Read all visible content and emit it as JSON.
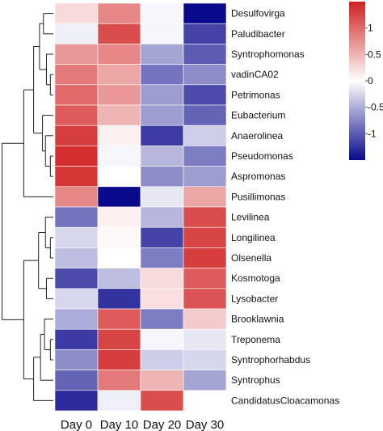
{
  "chart_data": {
    "type": "heatmap",
    "columns": [
      "Day 0",
      "Day 10",
      "Day 20",
      "Day 30"
    ],
    "rows": [
      {
        "name": "Desulfovirga",
        "values": [
          0.25,
          0.8,
          -0.05,
          -1.5
        ]
      },
      {
        "name": "Paludibacter",
        "values": [
          -0.1,
          1.2,
          -0.05,
          -1.15
        ]
      },
      {
        "name": "Syntrophomonas",
        "values": [
          0.7,
          0.8,
          -0.55,
          -1.0
        ]
      },
      {
        "name": "vadinCA02",
        "values": [
          0.9,
          0.6,
          -0.85,
          -0.7
        ]
      },
      {
        "name": "Petrimonas",
        "values": [
          1.0,
          0.7,
          -0.6,
          -1.1
        ]
      },
      {
        "name": "Eubacterium",
        "values": [
          1.1,
          0.5,
          -0.6,
          -0.95
        ]
      },
      {
        "name": "Anaerolinea",
        "values": [
          1.3,
          0.1,
          -1.2,
          -0.3
        ]
      },
      {
        "name": "Pseudomonas",
        "values": [
          1.4,
          -0.05,
          -0.45,
          -0.8
        ]
      },
      {
        "name": "Aspromonas",
        "values": [
          1.35,
          0.0,
          -0.7,
          -0.6
        ]
      },
      {
        "name": "Pusillimonas",
        "values": [
          0.8,
          -1.5,
          -0.15,
          0.6
        ]
      },
      {
        "name": "Levilinea",
        "values": [
          -0.85,
          0.1,
          -0.45,
          1.2
        ]
      },
      {
        "name": "Longilinea",
        "values": [
          -0.25,
          0.05,
          -1.15,
          1.25
        ]
      },
      {
        "name": "Olsenella",
        "values": [
          -0.4,
          0.0,
          -0.8,
          1.3
        ]
      },
      {
        "name": "Kosmotoga",
        "values": [
          -1.1,
          -0.4,
          0.25,
          1.1
        ]
      },
      {
        "name": "Lysobacter",
        "values": [
          -0.25,
          -1.25,
          0.2,
          1.15
        ]
      },
      {
        "name": "Brooklawnia",
        "values": [
          -0.5,
          1.1,
          -0.8,
          0.35
        ]
      },
      {
        "name": "Treponema",
        "values": [
          -1.2,
          1.25,
          -0.05,
          -0.15
        ]
      },
      {
        "name": "Syntrophorhabdus",
        "values": [
          -0.7,
          1.3,
          -0.3,
          -0.25
        ]
      },
      {
        "name": "Syntrophus",
        "values": [
          -0.95,
          0.9,
          0.5,
          -0.55
        ]
      },
      {
        "name": "CandidatusCloacamonas",
        "values": [
          -1.3,
          -0.1,
          1.2,
          0.0
        ]
      }
    ],
    "color_scale": {
      "min": -1.5,
      "max": 1.5,
      "low_color": "#0a0a8c",
      "mid_color": "#ffffff",
      "high_color": "#d02020"
    },
    "colorbar_ticks": [
      "1",
      "0.5",
      "0",
      "-0.5",
      "-1"
    ],
    "dendrogram": "rows",
    "legend_placement": "top-right"
  }
}
